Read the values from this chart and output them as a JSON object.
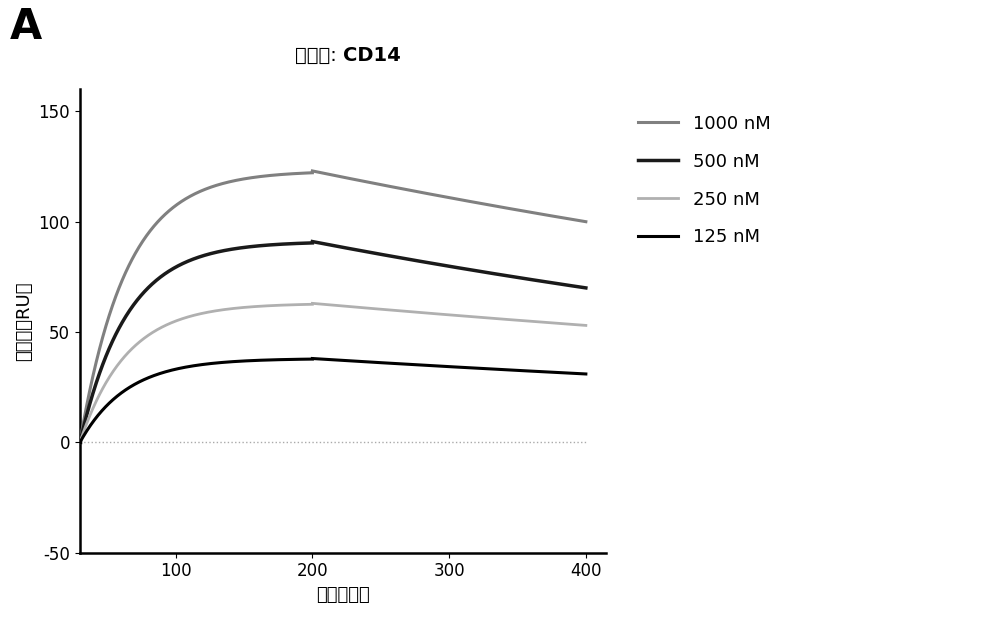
{
  "title_regular": "流动相: ",
  "title_bold": "CD14",
  "panel_label": "A",
  "xlabel": "时间（秒）",
  "ylabel": "响应値（RU）",
  "xlim": [
    30,
    415
  ],
  "ylim": [
    -50,
    160
  ],
  "yticks": [
    -50,
    0,
    50,
    100,
    150
  ],
  "xticks": [
    100,
    200,
    300,
    400
  ],
  "background_color": "#ffffff",
  "series": [
    {
      "label": "1000 nM",
      "color": "#808080",
      "linewidth": 2.2,
      "peak": 123,
      "end_value": 100
    },
    {
      "label": "500 nM",
      "color": "#1a1a1a",
      "linewidth": 2.5,
      "peak": 91,
      "end_value": 70
    },
    {
      "label": "250 nM",
      "color": "#b0b0b0",
      "linewidth": 2.0,
      "peak": 63,
      "end_value": 53
    },
    {
      "label": "125 nM",
      "color": "#000000",
      "linewidth": 2.2,
      "peak": 38,
      "end_value": 31
    }
  ],
  "ref_line_color": "#aaaaaa",
  "ref_line_linewidth": 1.0,
  "baseline_x": 30,
  "assoc_end_x": 200,
  "end_x": 400,
  "legend_fontsize": 13,
  "axis_fontsize": 13,
  "tick_fontsize": 12,
  "title_fontsize": 14,
  "panel_fontsize": 30
}
